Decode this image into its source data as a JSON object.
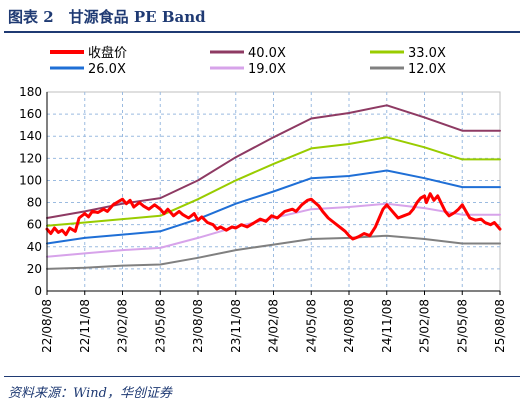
{
  "figure": {
    "title": "图表 2　甘源食品 PE Band",
    "source": "资料来源：Wind，华创证券"
  },
  "chart_data": {
    "type": "line",
    "x": [
      "22/08/08",
      "22/11/08",
      "23/02/08",
      "23/05/08",
      "23/08/08",
      "23/11/08",
      "24/02/08",
      "24/05/08",
      "24/08/08",
      "24/11/08",
      "25/02/08",
      "25/05/08",
      "25/08/08"
    ],
    "ylim": [
      0,
      180
    ],
    "yticks": [
      0,
      20,
      40,
      60,
      80,
      100,
      120,
      140,
      160,
      180
    ],
    "grid": true,
    "legend_position": "top",
    "series": [
      {
        "name": "收盘价",
        "color": "#ff0000",
        "width": 3,
        "kind": "price",
        "values": [
          [
            0,
            56
          ],
          [
            0.1,
            52
          ],
          [
            0.2,
            57
          ],
          [
            0.3,
            53
          ],
          [
            0.4,
            55
          ],
          [
            0.5,
            51
          ],
          [
            0.6,
            57
          ],
          [
            0.75,
            54
          ],
          [
            0.85,
            66
          ],
          [
            1.0,
            70
          ],
          [
            1.1,
            67
          ],
          [
            1.2,
            72
          ],
          [
            1.35,
            71
          ],
          [
            1.5,
            74
          ],
          [
            1.6,
            72
          ],
          [
            1.75,
            78
          ],
          [
            1.9,
            81
          ],
          [
            2.0,
            83
          ],
          [
            2.1,
            79
          ],
          [
            2.2,
            82
          ],
          [
            2.3,
            76
          ],
          [
            2.45,
            80
          ],
          [
            2.55,
            77
          ],
          [
            2.7,
            74
          ],
          [
            2.85,
            78
          ],
          [
            3.0,
            74
          ],
          [
            3.1,
            70
          ],
          [
            3.2,
            74
          ],
          [
            3.35,
            68
          ],
          [
            3.5,
            72
          ],
          [
            3.6,
            69
          ],
          [
            3.75,
            66
          ],
          [
            3.9,
            70
          ],
          [
            4.0,
            64
          ],
          [
            4.1,
            67
          ],
          [
            4.25,
            62
          ],
          [
            4.4,
            60
          ],
          [
            4.5,
            56
          ],
          [
            4.6,
            58
          ],
          [
            4.75,
            55
          ],
          [
            4.9,
            58
          ],
          [
            5.0,
            57
          ],
          [
            5.15,
            60
          ],
          [
            5.3,
            58
          ],
          [
            5.5,
            62
          ],
          [
            5.65,
            65
          ],
          [
            5.8,
            63
          ],
          [
            5.95,
            68
          ],
          [
            6.1,
            66
          ],
          [
            6.3,
            72
          ],
          [
            6.5,
            74
          ],
          [
            6.6,
            72
          ],
          [
            6.75,
            78
          ],
          [
            6.9,
            82
          ],
          [
            7.0,
            83
          ],
          [
            7.1,
            80
          ],
          [
            7.2,
            77
          ],
          [
            7.3,
            72
          ],
          [
            7.45,
            66
          ],
          [
            7.6,
            62
          ],
          [
            7.75,
            58
          ],
          [
            7.9,
            54
          ],
          [
            8.0,
            50
          ],
          [
            8.1,
            47
          ],
          [
            8.25,
            49
          ],
          [
            8.4,
            52
          ],
          [
            8.55,
            50
          ],
          [
            8.7,
            58
          ],
          [
            8.8,
            66
          ],
          [
            8.9,
            74
          ],
          [
            9.0,
            78
          ],
          [
            9.1,
            74
          ],
          [
            9.2,
            70
          ],
          [
            9.3,
            66
          ],
          [
            9.45,
            68
          ],
          [
            9.6,
            70
          ],
          [
            9.7,
            74
          ],
          [
            9.8,
            80
          ],
          [
            9.9,
            84
          ],
          [
            10.0,
            86
          ],
          [
            10.05,
            80
          ],
          [
            10.15,
            88
          ],
          [
            10.25,
            82
          ],
          [
            10.35,
            86
          ],
          [
            10.45,
            79
          ],
          [
            10.55,
            72
          ],
          [
            10.65,
            68
          ],
          [
            10.8,
            71
          ],
          [
            10.9,
            74
          ],
          [
            11.0,
            78
          ],
          [
            11.1,
            72
          ],
          [
            11.2,
            66
          ],
          [
            11.35,
            64
          ],
          [
            11.5,
            65
          ],
          [
            11.6,
            62
          ],
          [
            11.75,
            60
          ],
          [
            11.85,
            62
          ],
          [
            12.0,
            56
          ]
        ]
      },
      {
        "name": "40.0X",
        "color": "#8e3a63",
        "width": 2,
        "values": [
          [
            0,
            66
          ],
          [
            1,
            72
          ],
          [
            2,
            79
          ],
          [
            3,
            84
          ],
          [
            4,
            100
          ],
          [
            5,
            121
          ],
          [
            6,
            139
          ],
          [
            7,
            156
          ],
          [
            8,
            161
          ],
          [
            9,
            168
          ],
          [
            10,
            157
          ],
          [
            11,
            145
          ],
          [
            12,
            145
          ]
        ]
      },
      {
        "name": "33.0X",
        "color": "#99cc00",
        "width": 2,
        "values": [
          [
            0,
            59
          ],
          [
            1,
            62
          ],
          [
            2,
            65
          ],
          [
            3,
            68
          ],
          [
            4,
            83
          ],
          [
            5,
            100
          ],
          [
            6,
            115
          ],
          [
            7,
            129
          ],
          [
            8,
            133
          ],
          [
            9,
            139
          ],
          [
            10,
            130
          ],
          [
            11,
            119
          ],
          [
            12,
            119
          ]
        ]
      },
      {
        "name": "26.0X",
        "color": "#1f6fd6",
        "width": 2,
        "values": [
          [
            0,
            43
          ],
          [
            1,
            48
          ],
          [
            2,
            51
          ],
          [
            3,
            54
          ],
          [
            4,
            65
          ],
          [
            5,
            79
          ],
          [
            6,
            90
          ],
          [
            7,
            102
          ],
          [
            8,
            104
          ],
          [
            9,
            109
          ],
          [
            10,
            102
          ],
          [
            11,
            94
          ],
          [
            12,
            94
          ]
        ]
      },
      {
        "name": "19.0X",
        "color": "#d7a3ea",
        "width": 2,
        "values": [
          [
            0,
            31
          ],
          [
            1,
            34
          ],
          [
            2,
            37
          ],
          [
            3,
            39
          ],
          [
            4,
            48
          ],
          [
            5,
            58
          ],
          [
            6,
            66
          ],
          [
            7,
            74
          ],
          [
            8,
            76
          ],
          [
            9,
            79
          ],
          [
            10,
            75
          ],
          [
            11,
            69
          ],
          [
            12,
            69
          ]
        ]
      },
      {
        "name": "12.0X",
        "color": "#808080",
        "width": 2,
        "values": [
          [
            0,
            20
          ],
          [
            1,
            21
          ],
          [
            2,
            23
          ],
          [
            3,
            24
          ],
          [
            4,
            30
          ],
          [
            5,
            37
          ],
          [
            6,
            42
          ],
          [
            7,
            47
          ],
          [
            8,
            48
          ],
          [
            9,
            50
          ],
          [
            10,
            47
          ],
          [
            11,
            43
          ],
          [
            12,
            43
          ]
        ]
      }
    ]
  }
}
